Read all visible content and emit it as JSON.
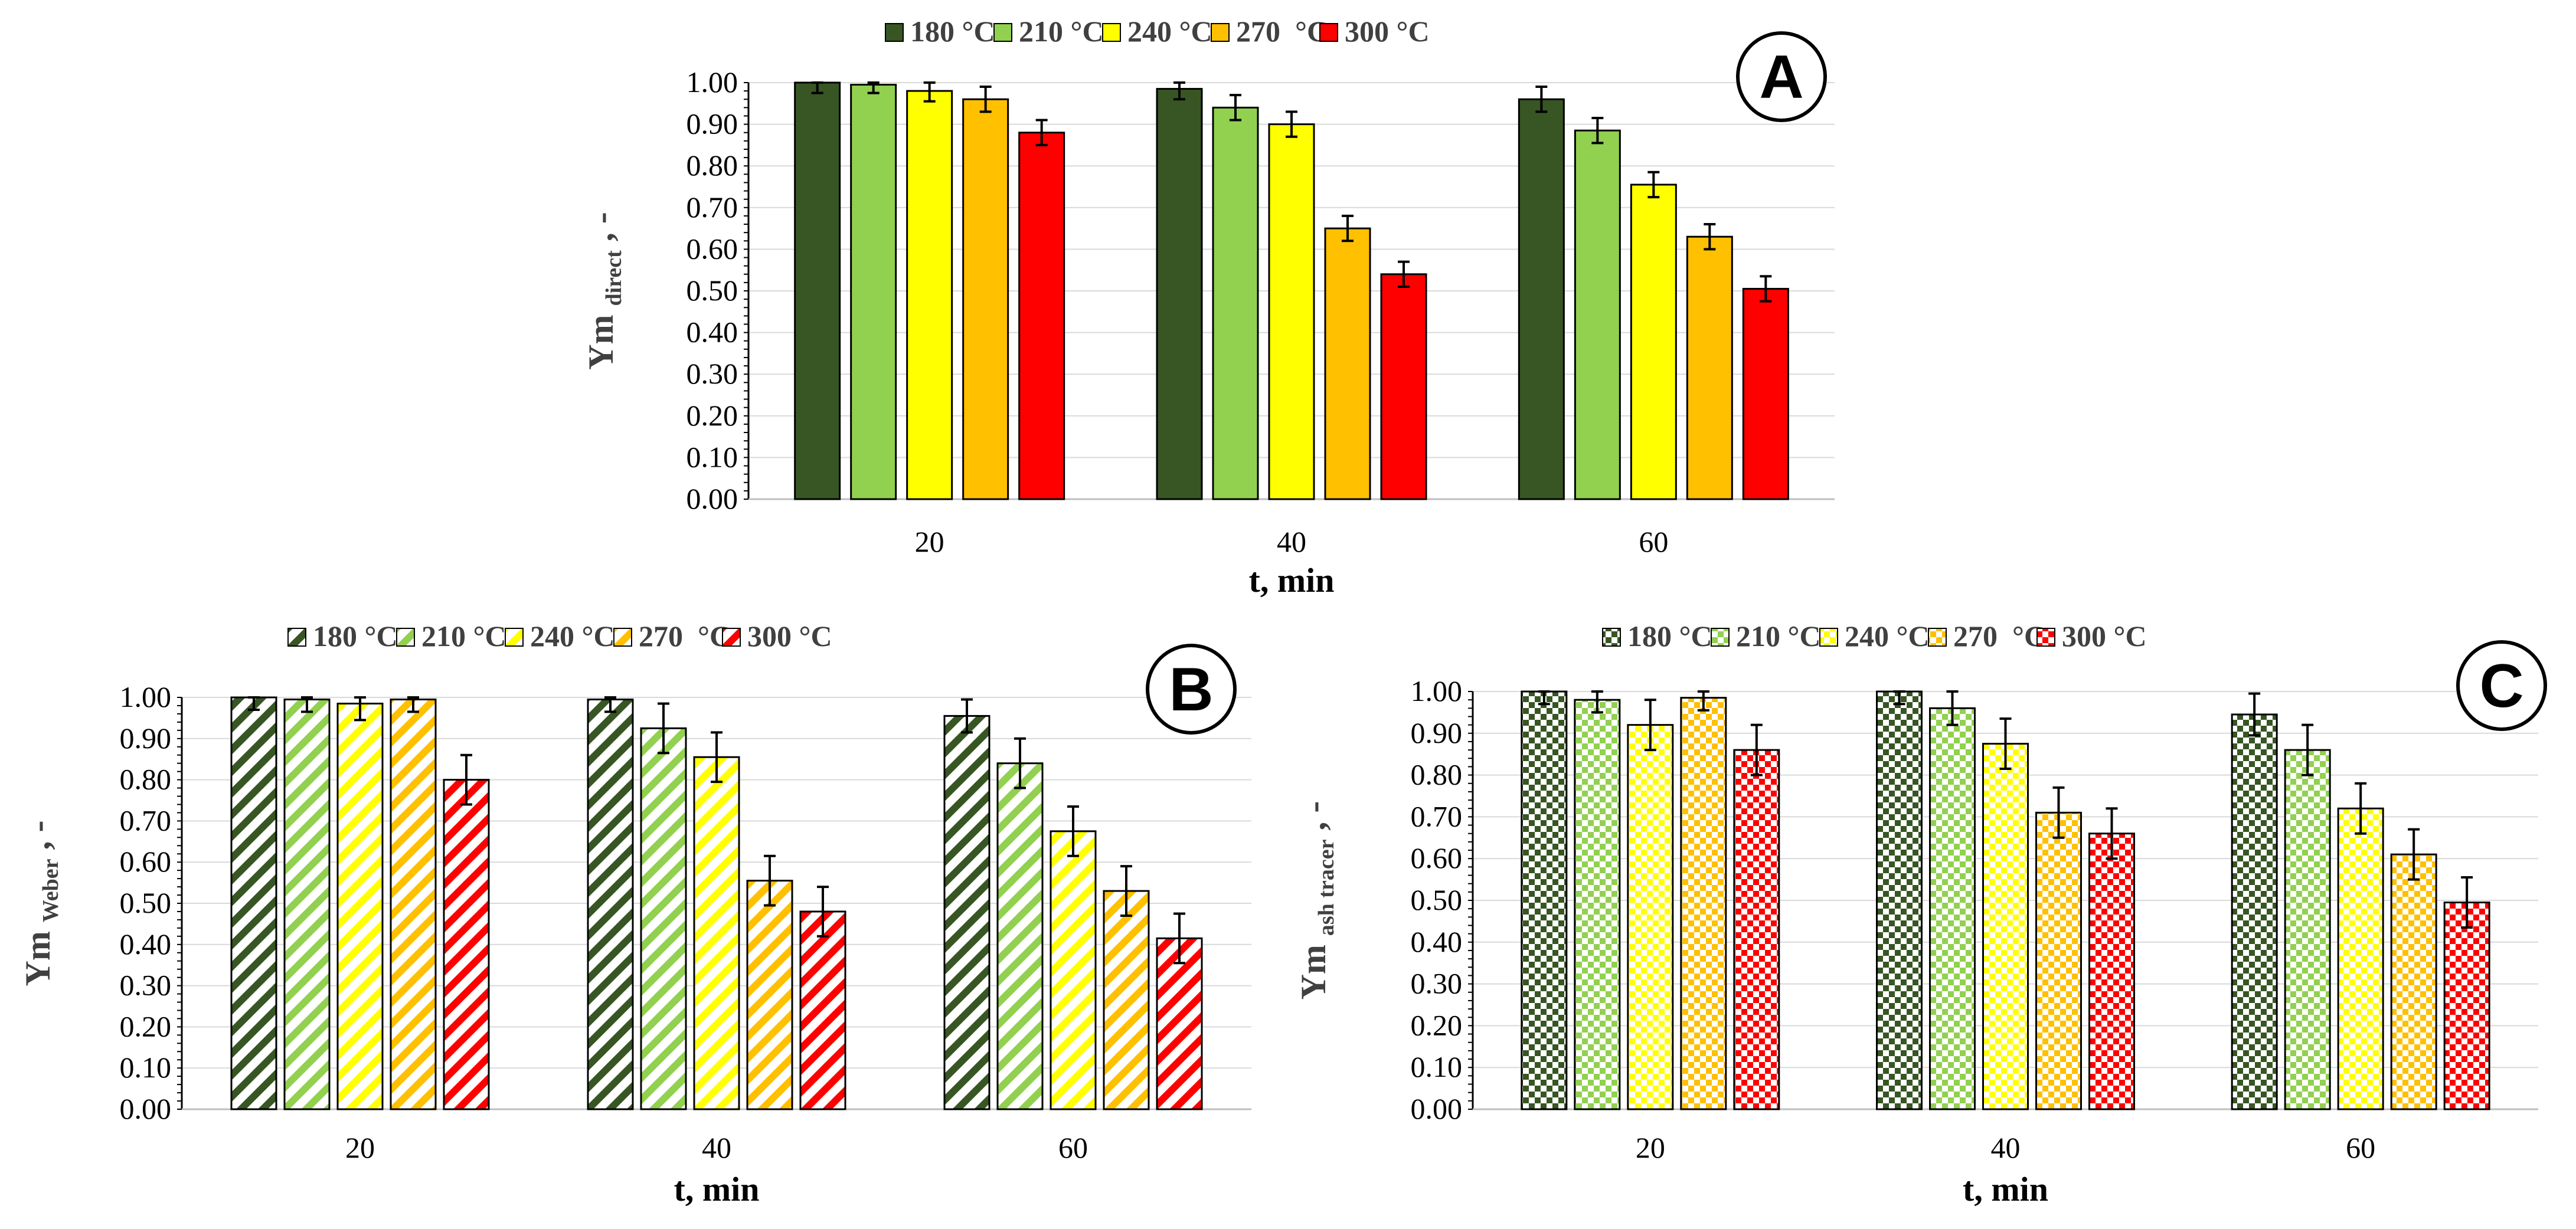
{
  "colors": {
    "180": "#375623",
    "210": "#92D050",
    "240": "#FFFF00",
    "270": "#FFC000",
    "300": "#FF0000"
  },
  "chart_data": [
    {
      "id": "A",
      "panel_label": "A",
      "type": "bar",
      "pattern": "solid",
      "title": "",
      "xlabel": "t, min",
      "ylabel_main": "Ym",
      "ylabel_sub": "direct",
      "ylabel_suffix": ", -",
      "ylim": [
        0,
        1
      ],
      "yticks": [
        "0.00",
        "0.10",
        "0.20",
        "0.30",
        "0.40",
        "0.50",
        "0.60",
        "0.70",
        "0.80",
        "0.90",
        "1.00"
      ],
      "categories": [
        "20",
        "40",
        "60"
      ],
      "legend_position": "top",
      "series": [
        {
          "name": "180 °C",
          "color_key": "180",
          "values": [
            1.0,
            0.985,
            0.96
          ],
          "errors": [
            0.025,
            0.025,
            0.03
          ]
        },
        {
          "name": "210 °C",
          "color_key": "210",
          "values": [
            0.995,
            0.94,
            0.885
          ],
          "errors": [
            0.02,
            0.03,
            0.03
          ]
        },
        {
          "name": "240 °C",
          "color_key": "240",
          "values": [
            0.98,
            0.9,
            0.755
          ],
          "errors": [
            0.025,
            0.03,
            0.03
          ]
        },
        {
          "name": "270  °C",
          "color_key": "270",
          "values": [
            0.96,
            0.65,
            0.63
          ],
          "errors": [
            0.03,
            0.03,
            0.03
          ]
        },
        {
          "name": "300 °C",
          "color_key": "300",
          "values": [
            0.88,
            0.54,
            0.505
          ],
          "errors": [
            0.03,
            0.03,
            0.03
          ]
        }
      ]
    },
    {
      "id": "B",
      "panel_label": "B",
      "type": "bar",
      "pattern": "stripes",
      "title": "",
      "xlabel": "t, min",
      "ylabel_main": "Ym",
      "ylabel_sub": "Weber",
      "ylabel_suffix": ", -",
      "ylim": [
        0,
        1
      ],
      "yticks": [
        "0.00",
        "0.10",
        "0.20",
        "0.30",
        "0.40",
        "0.50",
        "0.60",
        "0.70",
        "0.80",
        "0.90",
        "1.00"
      ],
      "categories": [
        "20",
        "40",
        "60"
      ],
      "legend_position": "top",
      "series": [
        {
          "name": "180 °C",
          "color_key": "180",
          "values": [
            1.0,
            0.995,
            0.955
          ],
          "errors": [
            0.03,
            0.03,
            0.04
          ]
        },
        {
          "name": "210 °C",
          "color_key": "210",
          "values": [
            0.995,
            0.925,
            0.84
          ],
          "errors": [
            0.03,
            0.06,
            0.06
          ]
        },
        {
          "name": "240 °C",
          "color_key": "240",
          "values": [
            0.985,
            0.855,
            0.675
          ],
          "errors": [
            0.04,
            0.06,
            0.06
          ]
        },
        {
          "name": "270  °C",
          "color_key": "270",
          "values": [
            0.995,
            0.555,
            0.53
          ],
          "errors": [
            0.03,
            0.06,
            0.06
          ]
        },
        {
          "name": "300 °C",
          "color_key": "300",
          "values": [
            0.8,
            0.48,
            0.415
          ],
          "errors": [
            0.06,
            0.06,
            0.06
          ]
        }
      ]
    },
    {
      "id": "C",
      "panel_label": "C",
      "type": "bar",
      "pattern": "checker",
      "title": "",
      "xlabel": "t, min",
      "ylabel_main": "Ym",
      "ylabel_sub": "ash tracer",
      "ylabel_suffix": ", -",
      "ylim": [
        0,
        1
      ],
      "yticks": [
        "0.00",
        "0.10",
        "0.20",
        "0.30",
        "0.40",
        "0.50",
        "0.60",
        "0.70",
        "0.80",
        "0.90",
        "1.00"
      ],
      "categories": [
        "20",
        "40",
        "60"
      ],
      "legend_position": "top",
      "series": [
        {
          "name": "180 °C",
          "color_key": "180",
          "values": [
            1.0,
            1.0,
            0.945
          ],
          "errors": [
            0.03,
            0.03,
            0.05
          ]
        },
        {
          "name": "210 °C",
          "color_key": "210",
          "values": [
            0.98,
            0.96,
            0.86
          ],
          "errors": [
            0.03,
            0.04,
            0.06
          ]
        },
        {
          "name": "240 °C",
          "color_key": "240",
          "values": [
            0.92,
            0.875,
            0.72
          ],
          "errors": [
            0.06,
            0.06,
            0.06
          ]
        },
        {
          "name": "270  °C",
          "color_key": "270",
          "values": [
            0.985,
            0.71,
            0.61
          ],
          "errors": [
            0.03,
            0.06,
            0.06
          ]
        },
        {
          "name": "300 °C",
          "color_key": "300",
          "values": [
            0.86,
            0.66,
            0.495
          ],
          "errors": [
            0.06,
            0.06,
            0.06
          ]
        }
      ]
    }
  ]
}
